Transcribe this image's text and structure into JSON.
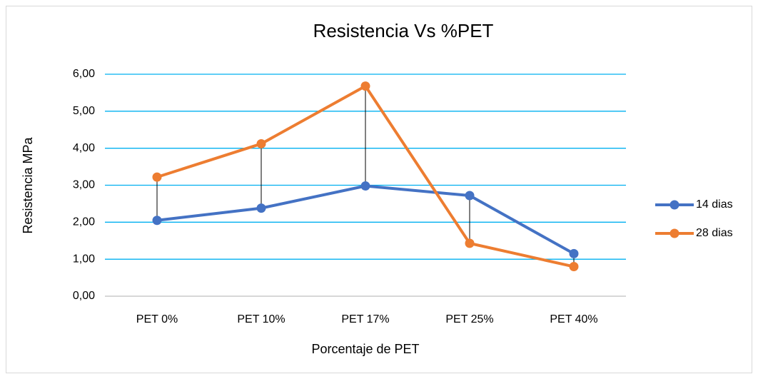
{
  "chart_data": {
    "type": "line",
    "title": "Resistencia Vs %PET",
    "x_label": "Porcentaje de PET",
    "y_label": "Resistencia  MPa",
    "categories": [
      "PET 0%",
      "PET 10%",
      "PET 17%",
      "PET 25%",
      "PET 40%"
    ],
    "series": [
      {
        "name": "14 dias",
        "color": "#4472c4",
        "values": [
          2.05,
          2.38,
          2.98,
          2.72,
          1.15
        ]
      },
      {
        "name": "28 dias",
        "color": "#ed7d31",
        "values": [
          3.22,
          4.12,
          5.68,
          1.43,
          0.8
        ]
      }
    ],
    "ylim": [
      0,
      6
    ],
    "yticks": [
      {
        "value": 0,
        "label": "0,00"
      },
      {
        "value": 1,
        "label": "1,00"
      },
      {
        "value": 2,
        "label": "2,00"
      },
      {
        "value": 3,
        "label": "3,00"
      },
      {
        "value": 4,
        "label": "4,00"
      },
      {
        "value": 5,
        "label": "5,00"
      },
      {
        "value": 6,
        "label": "6,00"
      }
    ],
    "grid": true,
    "grid_color": "#00b0f0",
    "high_low_lines": true,
    "legend": "right"
  }
}
